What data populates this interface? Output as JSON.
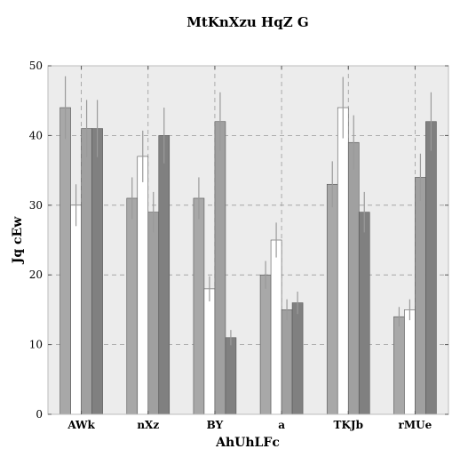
{
  "chart_data": {
    "type": "bar",
    "title": "MtKnXzu HqZ G",
    "xlabel": "AhUhLFc",
    "ylabel": "Jq cEw",
    "categories": [
      "AWk",
      "nXz",
      "BY",
      "a",
      "TKJb",
      "rMUe"
    ],
    "ylim": [
      0,
      50
    ],
    "yticks": [
      "0",
      "10",
      "20",
      "30",
      "40",
      "50"
    ],
    "grid": true,
    "legend": "none",
    "series": [
      {
        "color": "#a8a8a8",
        "values": [
          44,
          31,
          31,
          20,
          33,
          14
        ],
        "errors": [
          4.5,
          3.0,
          3.0,
          2.0,
          3.3,
          1.4
        ]
      },
      {
        "color": "#ffffff",
        "values": [
          30,
          37,
          18,
          25,
          44,
          15
        ],
        "errors": [
          3.0,
          3.7,
          1.8,
          2.5,
          4.4,
          1.5
        ]
      },
      {
        "color": "#a0a0a0",
        "values": [
          41,
          29,
          42,
          15,
          39,
          34
        ],
        "errors": [
          4.1,
          2.9,
          4.2,
          1.5,
          3.9,
          3.4
        ]
      },
      {
        "color": "#808080",
        "values": [
          41,
          40,
          11,
          16,
          29,
          42
        ],
        "errors": [
          4.1,
          4.0,
          1.1,
          1.6,
          2.9,
          4.2
        ]
      }
    ]
  }
}
